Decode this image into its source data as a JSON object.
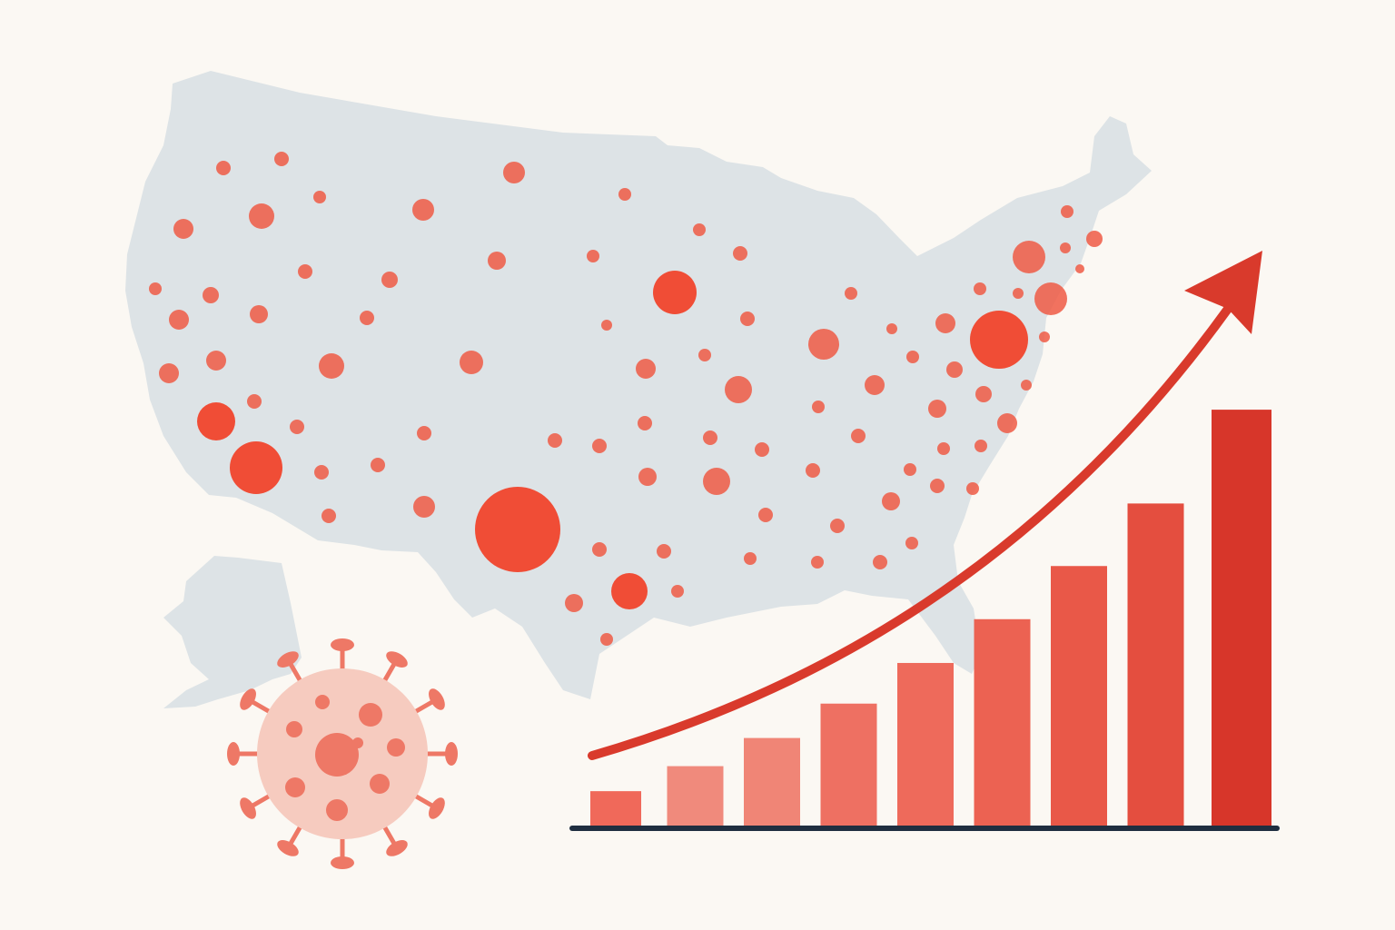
{
  "colors": {
    "background": "#fbf8f3",
    "map_fill": "#dde3e6",
    "hotspot": "#ef5a44",
    "hotspot_strong": "#f0442c",
    "virus_body": "#f6cbbf",
    "virus_spike": "#ee7866",
    "axis": "#1f2e40",
    "trend_arrow": "#d93a2c"
  },
  "icons": {
    "map": "us-map-icon",
    "virus": "virus-icon",
    "arrow": "trend-arrow-icon"
  },
  "chart_data": {
    "type": "bar",
    "categories": [
      "",
      "",
      "",
      "",
      "",
      "",
      "",
      "",
      ""
    ],
    "values": [
      1.1,
      1.9,
      2.8,
      3.9,
      5.2,
      6.6,
      8.3,
      10.3,
      13.3
    ],
    "colors": [
      "#f0695a",
      "#f08a7c",
      "#f08576",
      "#ee7062",
      "#ee6a5b",
      "#ec6252",
      "#e95848",
      "#e44e3f",
      "#d7362a"
    ],
    "ylim": [
      0,
      14
    ],
    "trend": "increasing",
    "grid": false,
    "title": "",
    "xlabel": "",
    "ylabel": ""
  }
}
